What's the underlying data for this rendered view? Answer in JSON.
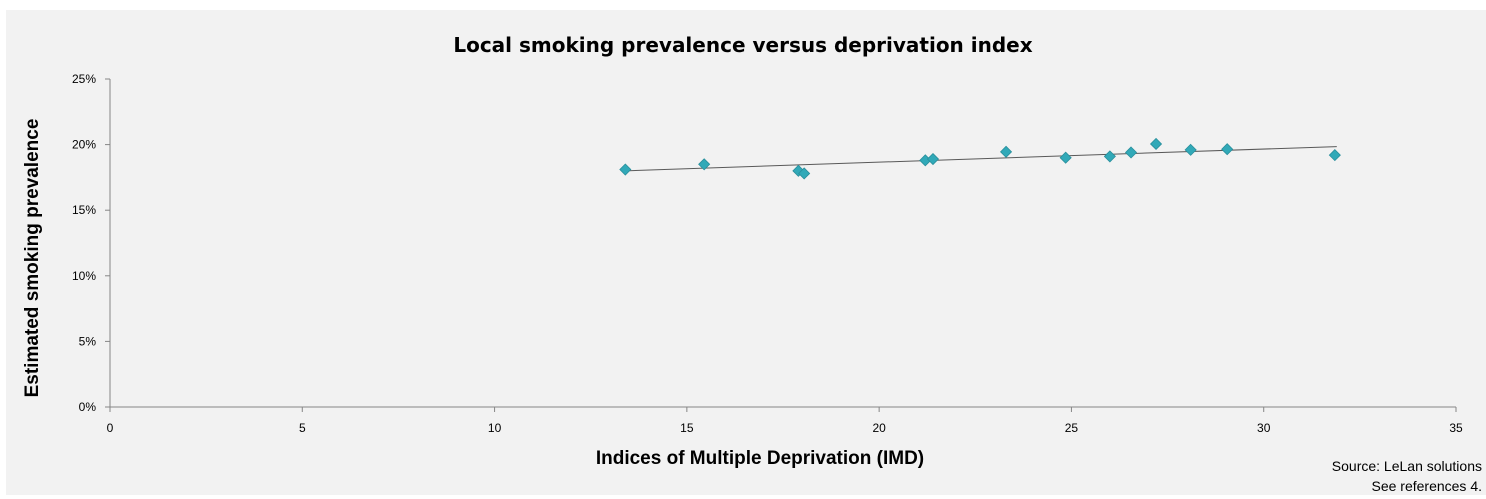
{
  "chart_data": {
    "type": "scatter",
    "title": "Local smoking prevalence versus deprivation index",
    "xlabel": "Indices of Multiple Deprivation (IMD)",
    "ylabel": "Estimated smoking prevalence",
    "xlim": [
      0,
      35
    ],
    "ylim": [
      0,
      25
    ],
    "x_ticks": [
      "0",
      "5",
      "10",
      "15",
      "20",
      "25",
      "30",
      "35"
    ],
    "x_tick_values": [
      0,
      5,
      10,
      15,
      20,
      25,
      30,
      35
    ],
    "y_ticks": [
      "0%",
      "5%",
      "10%",
      "15%",
      "20%",
      "25%"
    ],
    "y_tick_values": [
      0,
      5,
      10,
      15,
      20,
      25
    ],
    "grid": false,
    "legend": "none",
    "marker": "diamond",
    "marker_color": "#31a9b8",
    "trendline_color": "#595959",
    "points": [
      {
        "x": 13.4,
        "y": 18.1
      },
      {
        "x": 15.45,
        "y": 18.5
      },
      {
        "x": 17.9,
        "y": 18.0
      },
      {
        "x": 18.05,
        "y": 17.8
      },
      {
        "x": 21.2,
        "y": 18.8
      },
      {
        "x": 21.4,
        "y": 18.9
      },
      {
        "x": 23.3,
        "y": 19.45
      },
      {
        "x": 24.85,
        "y": 19.0
      },
      {
        "x": 26.0,
        "y": 19.1
      },
      {
        "x": 26.55,
        "y": 19.4
      },
      {
        "x": 27.2,
        "y": 20.05
      },
      {
        "x": 28.1,
        "y": 19.6
      },
      {
        "x": 29.05,
        "y": 19.65
      },
      {
        "x": 31.85,
        "y": 19.2
      }
    ],
    "trendline": {
      "x": [
        13.4,
        31.9
      ],
      "y": [
        18.0,
        19.85
      ]
    }
  },
  "source": {
    "line1": "Source: LeLan solutions",
    "line2": "See references 4."
  }
}
